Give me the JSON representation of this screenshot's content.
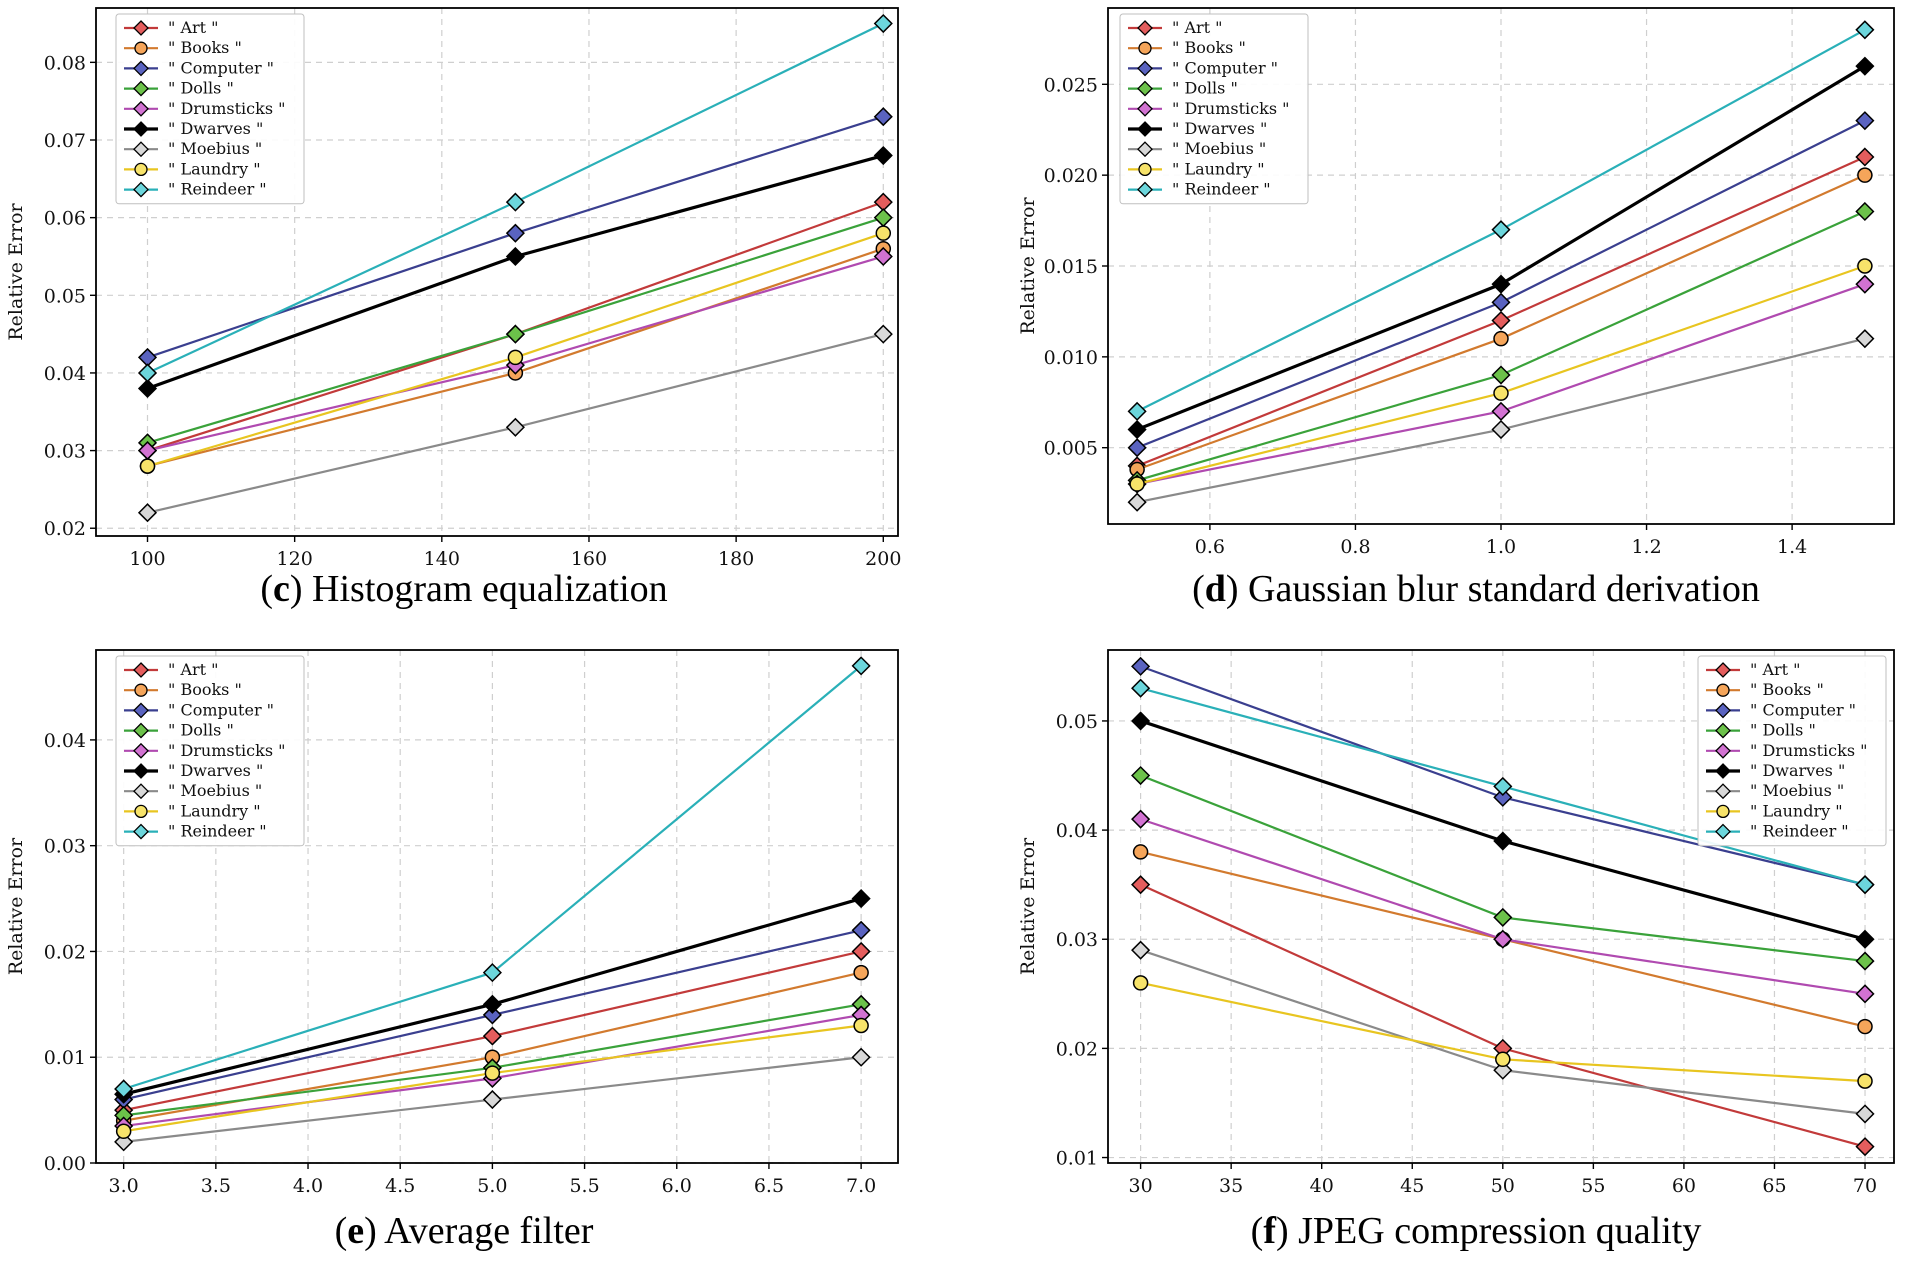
{
  "chart_data": [
    {
      "type": "line",
      "panel": "c",
      "caption_label": "c",
      "caption_text": " Histogram equalization",
      "xlabel": "",
      "ylabel": "Relative Error",
      "x": [
        100,
        150,
        200
      ],
      "xlim": [
        93,
        202
      ],
      "ylim": [
        0.019,
        0.087
      ],
      "xticks": [
        100,
        120,
        140,
        160,
        180,
        200
      ],
      "xtick_labels": [
        "100",
        "120",
        "140",
        "160",
        "180",
        "200"
      ],
      "yticks": [
        0.02,
        0.03,
        0.04,
        0.05,
        0.06,
        0.07,
        0.08
      ],
      "ytick_labels": [
        "0.02",
        "0.03",
        "0.04",
        "0.05",
        "0.06",
        "0.07",
        "0.08"
      ],
      "grid": true,
      "legend_position": "top-left",
      "series": [
        {
          "name": "\" Art \"",
          "values": [
            0.03,
            0.045,
            0.062
          ]
        },
        {
          "name": "\" Books \"",
          "values": [
            0.028,
            0.04,
            0.056
          ]
        },
        {
          "name": "\" Computer \"",
          "values": [
            0.042,
            0.058,
            0.073
          ]
        },
        {
          "name": "\" Dolls \"",
          "values": [
            0.031,
            0.045,
            0.06
          ]
        },
        {
          "name": "\" Drumsticks \"",
          "values": [
            0.03,
            0.041,
            0.055
          ]
        },
        {
          "name": "\" Dwarves \"",
          "values": [
            0.038,
            0.055,
            0.068
          ]
        },
        {
          "name": "\" Moebius \"",
          "values": [
            0.022,
            0.033,
            0.045
          ]
        },
        {
          "name": "\" Laundry \"",
          "values": [
            0.028,
            0.042,
            0.058
          ]
        },
        {
          "name": "\" Reindeer \"",
          "values": [
            0.04,
            0.062,
            0.085
          ]
        }
      ]
    },
    {
      "type": "line",
      "panel": "d",
      "caption_label": "d",
      "caption_text": " Gaussian blur standard derivation",
      "xlabel": "",
      "ylabel": "Relative Error",
      "x": [
        0.5,
        1.0,
        1.5
      ],
      "xlim": [
        0.46,
        1.54
      ],
      "ylim": [
        0.0008,
        0.0292
      ],
      "xticks": [
        0.6,
        0.8,
        1.0,
        1.2,
        1.4
      ],
      "xtick_labels": [
        "0.6",
        "0.8",
        "1.0",
        "1.2",
        "1.4"
      ],
      "yticks": [
        0.005,
        0.01,
        0.015,
        0.02,
        0.025
      ],
      "ytick_labels": [
        "0.005",
        "0.010",
        "0.015",
        "0.020",
        "0.025"
      ],
      "grid": true,
      "legend_position": "top-left",
      "series": [
        {
          "name": "\" Art \"",
          "values": [
            0.004,
            0.012,
            0.021
          ]
        },
        {
          "name": "\" Books \"",
          "values": [
            0.0038,
            0.011,
            0.02
          ]
        },
        {
          "name": "\" Computer \"",
          "values": [
            0.005,
            0.013,
            0.023
          ]
        },
        {
          "name": "\" Dolls \"",
          "values": [
            0.0032,
            0.009,
            0.018
          ]
        },
        {
          "name": "\" Drumsticks \"",
          "values": [
            0.003,
            0.007,
            0.014
          ]
        },
        {
          "name": "\" Dwarves \"",
          "values": [
            0.006,
            0.014,
            0.026
          ]
        },
        {
          "name": "\" Moebius \"",
          "values": [
            0.002,
            0.006,
            0.011
          ]
        },
        {
          "name": "\" Laundry \"",
          "values": [
            0.003,
            0.008,
            0.015
          ]
        },
        {
          "name": "\" Reindeer \"",
          "values": [
            0.007,
            0.017,
            0.028
          ]
        }
      ]
    },
    {
      "type": "line",
      "panel": "e",
      "caption_label": "e",
      "caption_text": " Average filter",
      "xlabel": "",
      "ylabel": "Relative Error",
      "x": [
        3.0,
        5.0,
        7.0
      ],
      "xlim": [
        2.85,
        7.2
      ],
      "ylim": [
        0.0,
        0.0485
      ],
      "xticks": [
        3.0,
        3.5,
        4.0,
        4.5,
        5.0,
        5.5,
        6.0,
        6.5,
        7.0
      ],
      "xtick_labels": [
        "3.0",
        "3.5",
        "4.0",
        "4.5",
        "5.0",
        "5.5",
        "6.0",
        "6.5",
        "7.0"
      ],
      "yticks": [
        0.0,
        0.01,
        0.02,
        0.03,
        0.04
      ],
      "ytick_labels": [
        "0.00",
        "0.01",
        "0.02",
        "0.03",
        "0.04"
      ],
      "grid": true,
      "legend_position": "top-left",
      "series": [
        {
          "name": "\" Art \"",
          "values": [
            0.005,
            0.012,
            0.02
          ]
        },
        {
          "name": "\" Books \"",
          "values": [
            0.004,
            0.01,
            0.018
          ]
        },
        {
          "name": "\" Computer \"",
          "values": [
            0.006,
            0.014,
            0.022
          ]
        },
        {
          "name": "\" Dolls \"",
          "values": [
            0.0045,
            0.009,
            0.015
          ]
        },
        {
          "name": "\" Drumsticks \"",
          "values": [
            0.0035,
            0.008,
            0.014
          ]
        },
        {
          "name": "\" Dwarves \"",
          "values": [
            0.0065,
            0.015,
            0.025
          ]
        },
        {
          "name": "\" Moebius \"",
          "values": [
            0.002,
            0.006,
            0.01
          ]
        },
        {
          "name": "\" Laundry \"",
          "values": [
            0.003,
            0.0085,
            0.013
          ]
        },
        {
          "name": "\" Reindeer \"",
          "values": [
            0.007,
            0.018,
            0.047
          ]
        }
      ]
    },
    {
      "type": "line",
      "panel": "f",
      "caption_label": "f",
      "caption_text": " JPEG compression quality",
      "xlabel": "",
      "ylabel": "Relative Error",
      "x": [
        30,
        50,
        70
      ],
      "xlim": [
        28.2,
        71.6
      ],
      "ylim": [
        0.0095,
        0.0565
      ],
      "xticks": [
        30,
        35,
        40,
        45,
        50,
        55,
        60,
        65,
        70
      ],
      "xtick_labels": [
        "30",
        "35",
        "40",
        "45",
        "50",
        "55",
        "60",
        "65",
        "70"
      ],
      "yticks": [
        0.01,
        0.02,
        0.03,
        0.04,
        0.05
      ],
      "ytick_labels": [
        "0.01",
        "0.02",
        "0.03",
        "0.04",
        "0.05"
      ],
      "grid": true,
      "legend_position": "top-right",
      "series": [
        {
          "name": "\" Art \"",
          "values": [
            0.035,
            0.02,
            0.011
          ]
        },
        {
          "name": "\" Books \"",
          "values": [
            0.038,
            0.03,
            0.022
          ]
        },
        {
          "name": "\" Computer \"",
          "values": [
            0.055,
            0.043,
            0.035
          ]
        },
        {
          "name": "\" Dolls \"",
          "values": [
            0.045,
            0.032,
            0.028
          ]
        },
        {
          "name": "\" Drumsticks \"",
          "values": [
            0.041,
            0.03,
            0.025
          ]
        },
        {
          "name": "\" Dwarves \"",
          "values": [
            0.05,
            0.039,
            0.03
          ]
        },
        {
          "name": "\" Moebius \"",
          "values": [
            0.029,
            0.018,
            0.014
          ]
        },
        {
          "name": "\" Laundry \"",
          "values": [
            0.026,
            0.019,
            0.017
          ]
        },
        {
          "name": "\" Reindeer \"",
          "values": [
            0.053,
            0.044,
            0.035
          ]
        }
      ]
    }
  ],
  "series_styles": [
    {
      "line": "#c23a3a",
      "fill": "#e45d5d",
      "marker": "diamond"
    },
    {
      "line": "#d27a2e",
      "fill": "#f5a55a",
      "marker": "circle"
    },
    {
      "line": "#3a3f8f",
      "fill": "#5a63c0",
      "marker": "diamond"
    },
    {
      "line": "#3aa23a",
      "fill": "#6cc24a",
      "marker": "diamond"
    },
    {
      "line": "#b04ab0",
      "fill": "#d272d2",
      "marker": "diamond"
    },
    {
      "line": "#000000",
      "fill": "#000000",
      "marker": "diamond"
    },
    {
      "line": "#8a8a8a",
      "fill": "#d8d8d8",
      "marker": "diamond"
    },
    {
      "line": "#e8c520",
      "fill": "#f7e36a",
      "marker": "circle"
    },
    {
      "line": "#2ab0b8",
      "fill": "#6cd6dc",
      "marker": "diamond"
    }
  ]
}
